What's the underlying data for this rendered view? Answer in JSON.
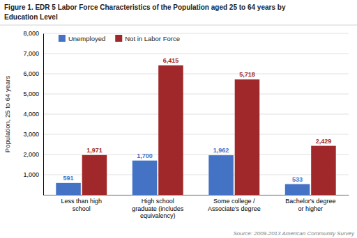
{
  "chart_data": {
    "type": "bar",
    "title": "Figure 1. EDR 5 Labor Force Characteristics of the Population aged 25 to 64 years by\nEducation Level",
    "categories": [
      "Less than high\nschool",
      "High school\ngraduate (includes\nequivalency)",
      "Some college /\nAssociate's degree",
      "Bachelor's degree\nor higher"
    ],
    "series": [
      {
        "name": "Unemployed",
        "color": "#4472C4",
        "values": [
          591,
          1700,
          1962,
          533
        ],
        "value_labels": [
          "591",
          "1,700",
          "1,962",
          "533"
        ]
      },
      {
        "name": "Not in Labor Force",
        "color": "#A0282A",
        "values": [
          1971,
          6415,
          5718,
          2429
        ],
        "value_labels": [
          "1,971",
          "6,415",
          "5,718",
          "2,429"
        ]
      }
    ],
    "ylabel": "Population, 25 to 64 years",
    "ylim": [
      0,
      8000
    ],
    "yticks": [
      {
        "value": 0,
        "label": null
      },
      {
        "value": 1000,
        "label": "1,000"
      },
      {
        "value": 2000,
        "label": "2,000"
      },
      {
        "value": 3000,
        "label": "3,000"
      },
      {
        "value": 4000,
        "label": "4,000"
      },
      {
        "value": 5000,
        "label": "5,000"
      },
      {
        "value": 6000,
        "label": "6,000"
      },
      {
        "value": 7000,
        "label": "7,000"
      },
      {
        "value": 8000,
        "label": "8,000"
      }
    ],
    "annotations": [
      "Source: 2009-2013 American Community Survey"
    ],
    "grid": true,
    "legend": "upper left",
    "data_labels": true
  }
}
